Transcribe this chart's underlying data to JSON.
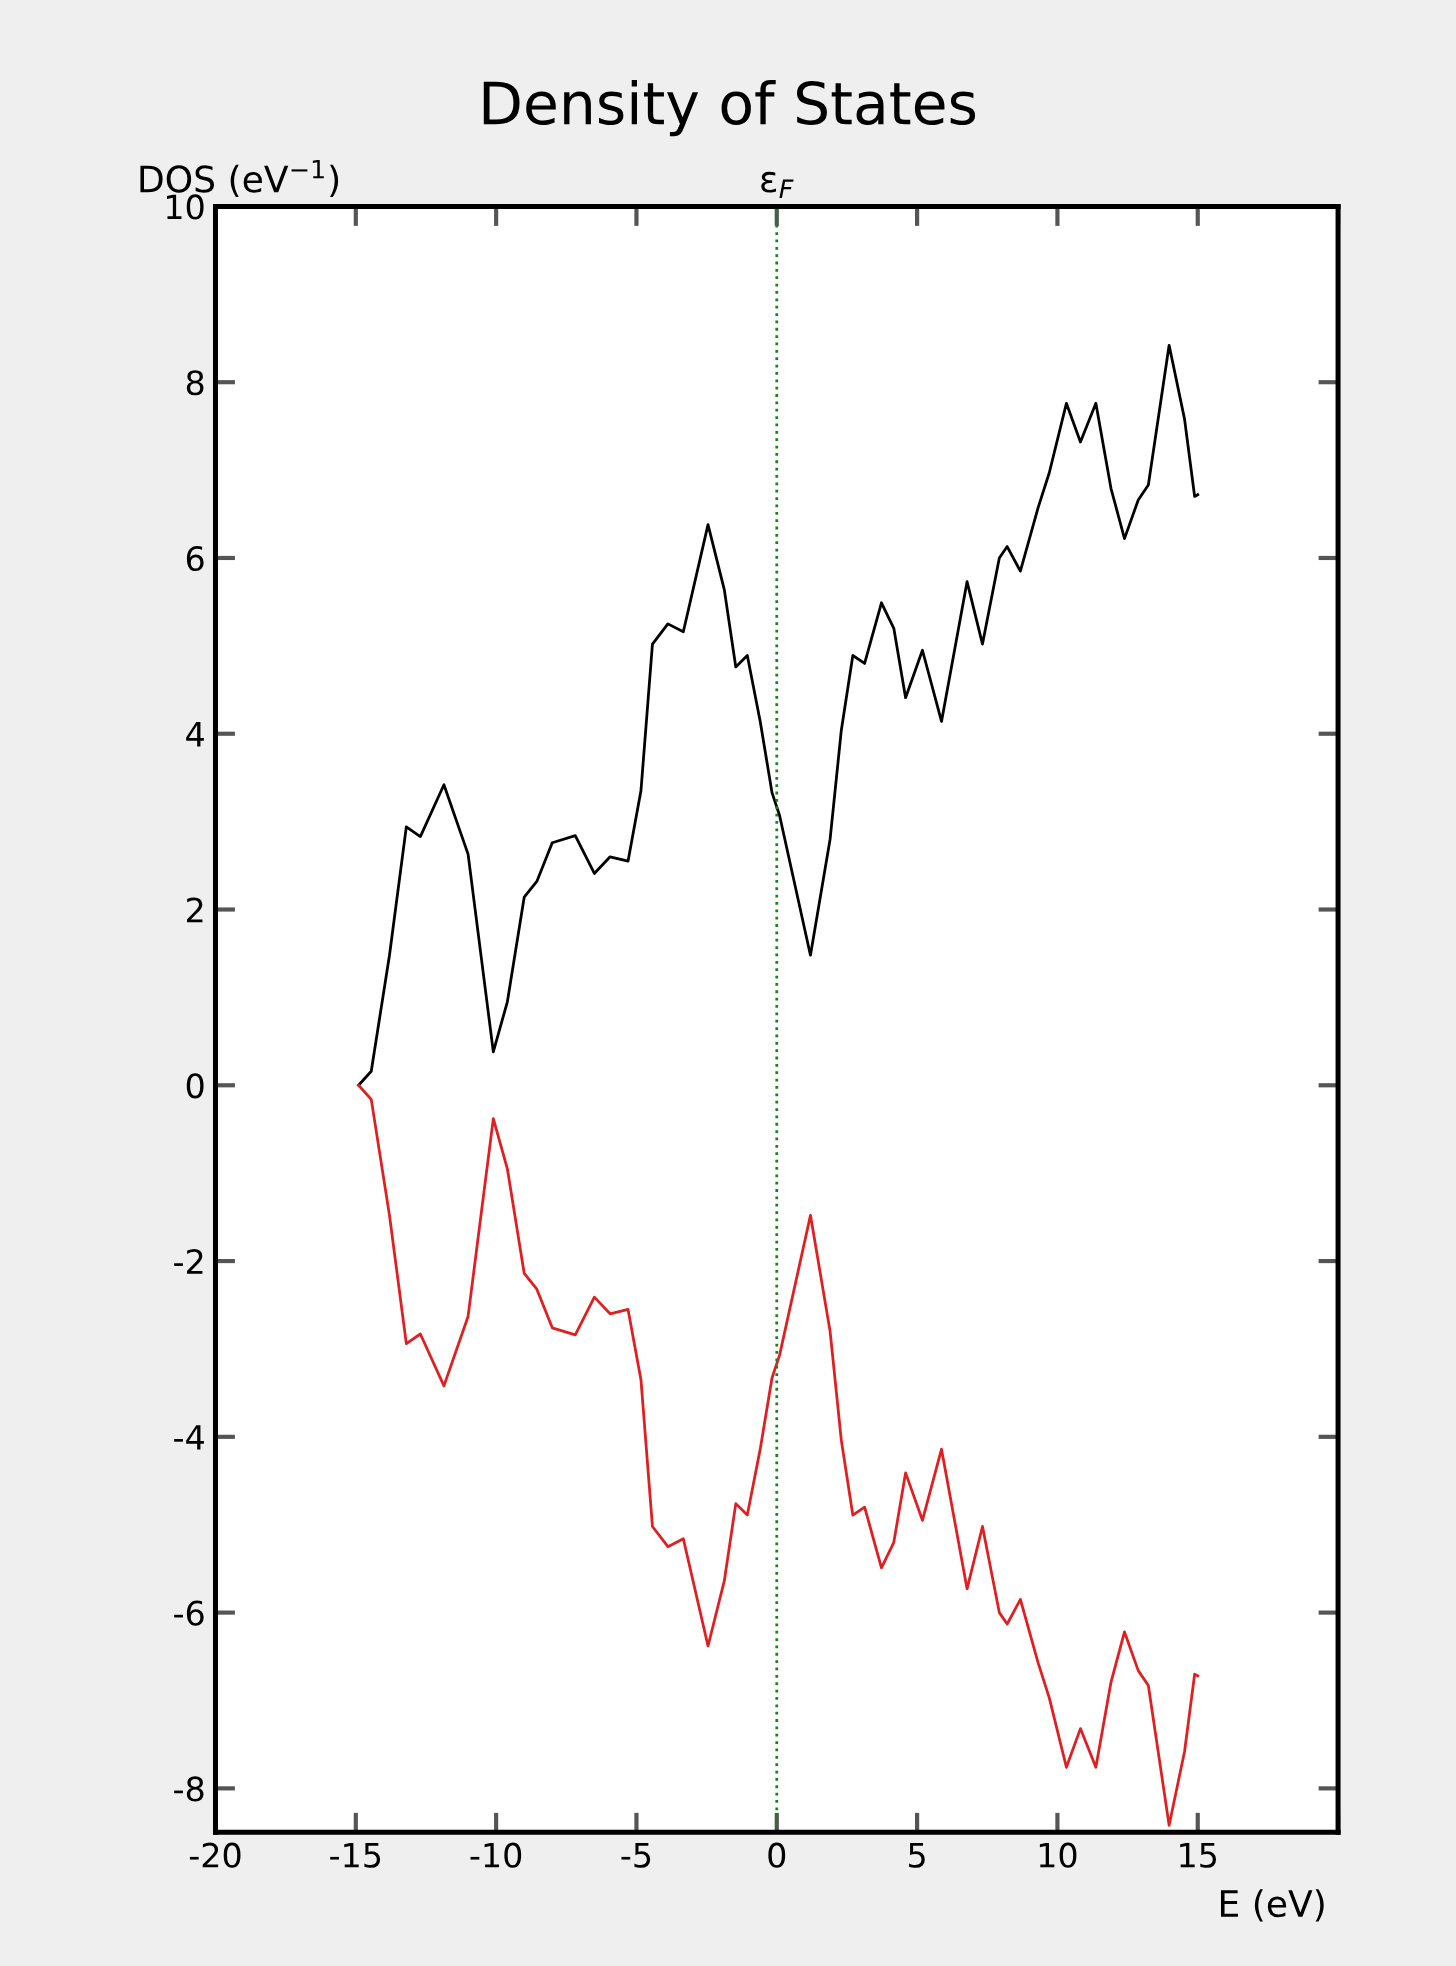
{
  "chart_data": {
    "type": "line",
    "title": "Density of States",
    "xlabel": "E (eV)",
    "ylabel": "DOS (eV$^{−1}$)",
    "x": [
      -14.9,
      -14.45,
      -13.8,
      -13.2,
      -12.7,
      -11.86,
      -11.0,
      -10.1,
      -9.6,
      -9.0,
      -8.55,
      -8.0,
      -7.18,
      -6.5,
      -5.94,
      -5.3,
      -4.84,
      -4.43,
      -3.88,
      -3.33,
      -2.45,
      -1.87,
      -1.46,
      -1.05,
      -0.59,
      -0.17,
      0.1,
      1.2,
      1.9,
      2.3,
      2.71,
      3.13,
      3.73,
      4.17,
      4.59,
      5.19,
      5.87,
      6.78,
      7.33,
      7.93,
      8.21,
      8.68,
      9.31,
      9.71,
      10.32,
      10.82,
      11.37,
      11.91,
      12.39,
      12.88,
      13.24,
      13.98,
      14.53,
      14.89,
      15.0
    ],
    "series": [
      {
        "color": "#000000",
        "values": [
          0,
          0.16,
          1.48,
          2.94,
          2.83,
          3.42,
          2.63,
          0.38,
          0.95,
          2.14,
          2.32,
          2.76,
          2.84,
          2.41,
          2.6,
          2.55,
          3.35,
          5.02,
          5.25,
          5.16,
          6.38,
          5.64,
          4.76,
          4.89,
          4.14,
          3.33,
          3.07,
          1.48,
          2.8,
          4.04,
          4.89,
          4.8,
          5.49,
          5.2,
          4.41,
          4.95,
          4.14,
          5.73,
          5.02,
          6.0,
          6.13,
          5.85,
          6.57,
          6.97,
          7.76,
          7.32,
          7.76,
          6.79,
          6.22,
          6.66,
          6.83,
          8.42,
          7.58,
          6.7,
          6.72
        ]
      },
      {
        "color": "#e02020",
        "values": [
          0,
          -0.16,
          -1.48,
          -2.94,
          -2.83,
          -3.42,
          -2.63,
          -0.38,
          -0.95,
          -2.14,
          -2.32,
          -2.76,
          -2.84,
          -2.41,
          -2.6,
          -2.55,
          -3.35,
          -5.02,
          -5.25,
          -5.16,
          -6.38,
          -5.64,
          -4.76,
          -4.89,
          -4.14,
          -3.33,
          -3.07,
          -1.48,
          -2.8,
          -4.04,
          -4.89,
          -4.8,
          -5.49,
          -5.2,
          -4.41,
          -4.95,
          -4.14,
          -5.73,
          -5.02,
          -6.0,
          -6.13,
          -5.85,
          -6.57,
          -6.97,
          -7.76,
          -7.32,
          -7.76,
          -6.79,
          -6.22,
          -6.66,
          -6.83,
          -8.42,
          -7.58,
          -6.7,
          -6.72
        ]
      }
    ],
    "xlim": [
      -20,
      20
    ],
    "xticks": [
      -20,
      -15,
      -10,
      -5,
      0,
      5,
      10,
      15,
      {
        "value": 20,
        "label": null
      }
    ],
    "ylim": [
      -8.5,
      10
    ],
    "yticks": [
      -8,
      -6,
      -4,
      -2,
      0,
      2,
      4,
      6,
      8,
      10
    ],
    "ref_lines": [
      {
        "axis": "x",
        "value": 0,
        "label": "ε$_{F}$",
        "color": "#208020",
        "line_style": "dotted"
      }
    ],
    "grid": false,
    "legend": false,
    "line_style": "solid",
    "marker": "none"
  }
}
